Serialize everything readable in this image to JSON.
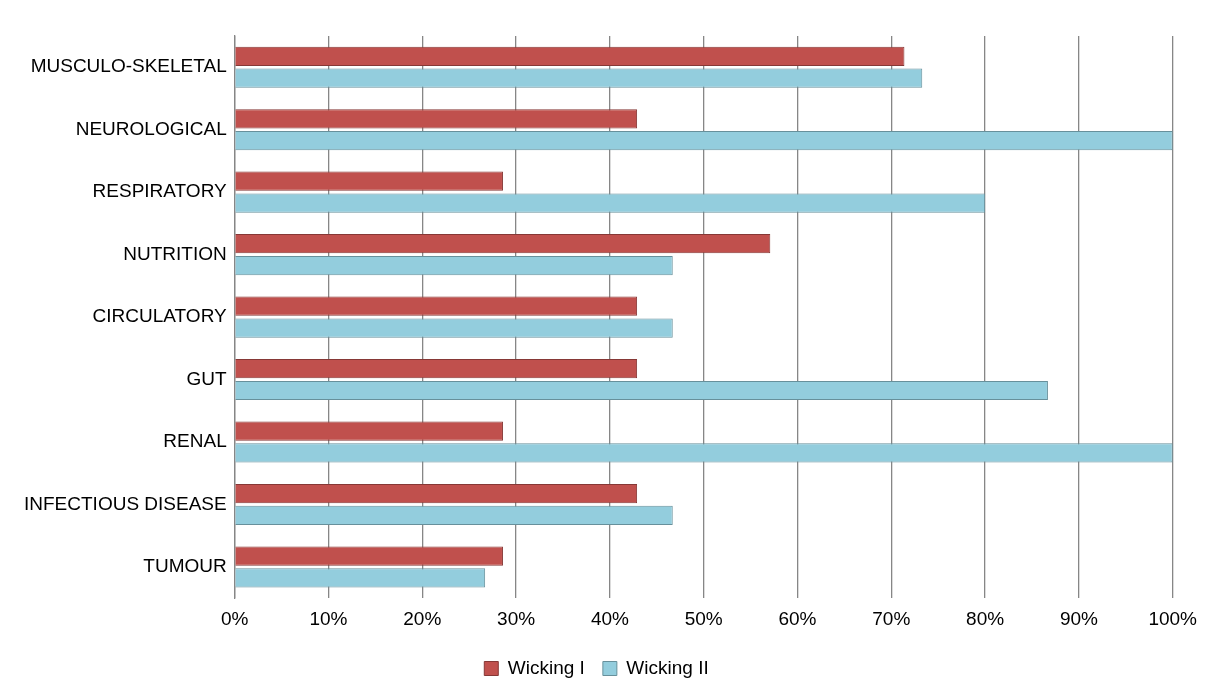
{
  "chart_data": {
    "type": "bar",
    "orientation": "horizontal",
    "categories": [
      "MUSCULO-SKELETAL",
      "NEUROLOGICAL",
      "RESPIRATORY",
      "NUTRITION",
      "CIRCULATORY",
      "GUT",
      "RENAL",
      "INFECTIOUS DISEASE",
      "TUMOUR"
    ],
    "series": [
      {
        "name": "Wicking I",
        "color": "#c0504d",
        "values": [
          71.4,
          42.9,
          28.6,
          57.1,
          42.9,
          42.9,
          28.6,
          42.9,
          28.6
        ]
      },
      {
        "name": "Wicking II",
        "color": "#93cddd",
        "values": [
          73.3,
          100,
          80,
          46.7,
          46.7,
          86.7,
          100,
          46.7,
          26.7
        ]
      }
    ],
    "xlim": [
      0,
      100
    ],
    "xticks": [
      {
        "value": 0,
        "label": "0%"
      },
      {
        "value": 10,
        "label": "10%"
      },
      {
        "value": 20,
        "label": "20%"
      },
      {
        "value": 30,
        "label": "30%"
      },
      {
        "value": 40,
        "label": "40%"
      },
      {
        "value": 50,
        "label": "50%"
      },
      {
        "value": 60,
        "label": "60%"
      },
      {
        "value": 70,
        "label": "70%"
      },
      {
        "value": 80,
        "label": "80%"
      },
      {
        "value": 90,
        "label": "90%"
      },
      {
        "value": 100,
        "label": "100%"
      }
    ],
    "grid": "x",
    "legend": "bottom"
  }
}
